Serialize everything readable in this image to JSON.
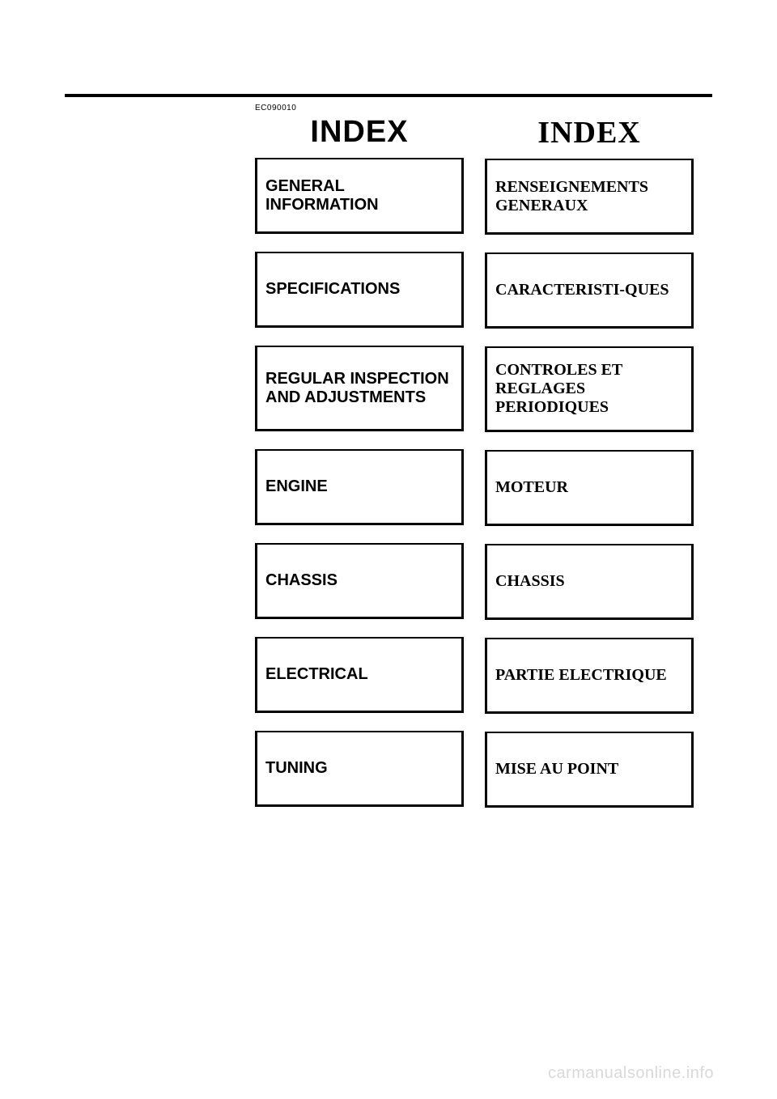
{
  "doc_number": "EC090010",
  "left": {
    "title": "INDEX",
    "items": [
      "GENERAL INFORMATION",
      "SPECIFICATIONS",
      "REGULAR INSPECTION AND ADJUSTMENTS",
      "ENGINE",
      "CHASSIS",
      "ELECTRICAL",
      "TUNING"
    ]
  },
  "right": {
    "title": "INDEX",
    "items": [
      "RENSEIGNEMENTS GENERAUX",
      "CARACTERISTI-QUES",
      "CONTROLES ET REGLAGES PERIODIQUES",
      "MOTEUR",
      "CHASSIS",
      "PARTIE ELECTRIQUE",
      "MISE AU POINT"
    ]
  },
  "watermark": "carmanualsonline.info",
  "colors": {
    "background": "#ffffff",
    "text": "#000000",
    "border": "#000000",
    "watermark": "#d9d9d9"
  }
}
